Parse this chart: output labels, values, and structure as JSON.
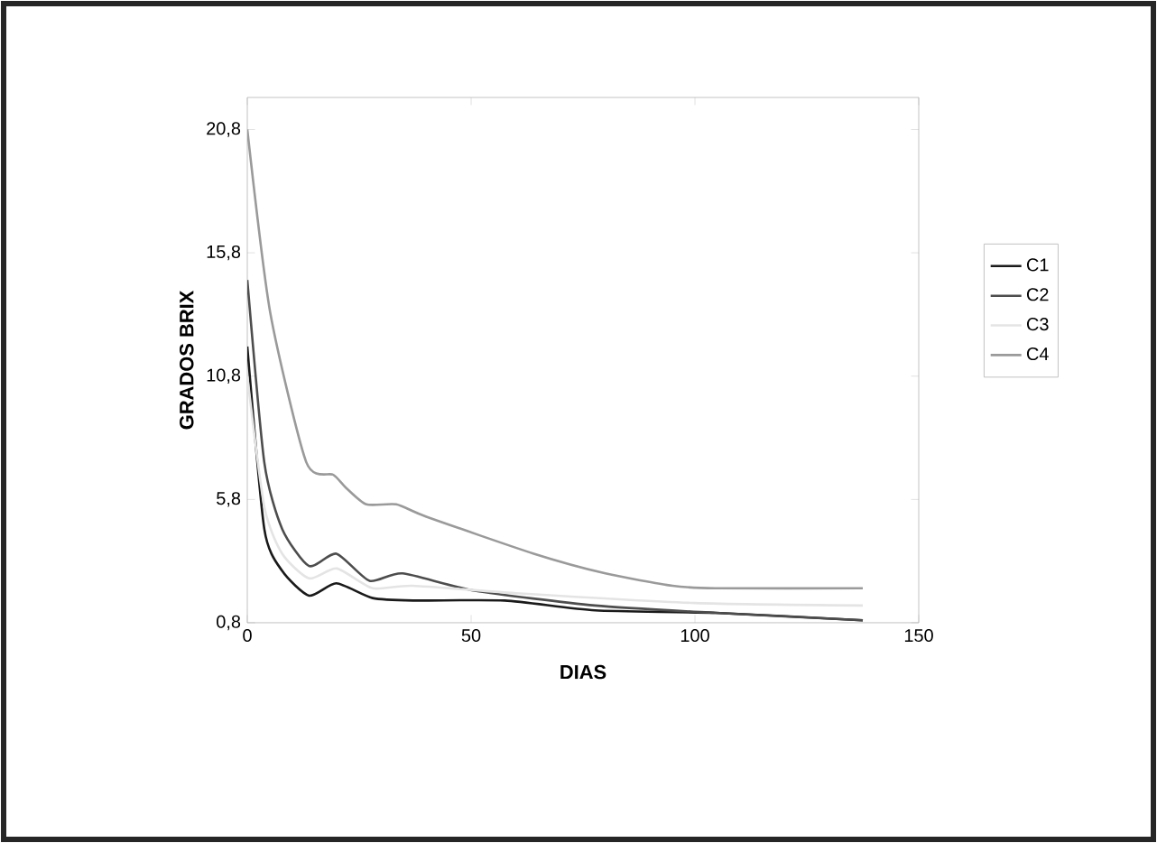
{
  "chart_data": {
    "type": "line",
    "xlabel": "DIAS",
    "ylabel": "GRADOS BRIX",
    "xlim": [
      0,
      150
    ],
    "ylim": [
      0.8,
      22.1
    ],
    "xticks": [
      0,
      50,
      100,
      150
    ],
    "yticks": [
      {
        "value": 0.8,
        "label": "0,8"
      },
      {
        "value": 5.8,
        "label": "5,8"
      },
      {
        "value": 10.8,
        "label": "10,8"
      },
      {
        "value": 15.8,
        "label": "15,8"
      },
      {
        "value": 20.8,
        "label": "20,8"
      }
    ],
    "grid": false,
    "legend": "right",
    "marker": "none",
    "line_style": "solid",
    "series": [
      {
        "name": "C1",
        "color": "#1a1a1a",
        "x": [
          0,
          3.8,
          7.8,
          13.8,
          19.9,
          28,
          37.4,
          57.5,
          77.7,
          104.6,
          137.5
        ],
        "values": [
          12.0,
          4.6,
          2.9,
          1.9,
          2.4,
          1.8,
          1.7,
          1.7,
          1.3,
          1.2,
          0.9
        ]
      },
      {
        "name": "C2",
        "color": "#4d4d4d",
        "x": [
          0,
          3.8,
          7.8,
          13.8,
          19.9,
          27.3,
          34.7,
          50.8,
          77.7,
          104.6,
          137.5
        ],
        "values": [
          14.7,
          7.3,
          4.6,
          3.1,
          3.6,
          2.5,
          2.8,
          2.1,
          1.5,
          1.2,
          0.9
        ]
      },
      {
        "name": "C3",
        "color": "#e4e4e4",
        "x": [
          0,
          3.8,
          7.8,
          13.8,
          20,
          28,
          37,
          60,
          100,
          137.5
        ],
        "values": [
          10.8,
          5.5,
          3.6,
          2.6,
          3.0,
          2.2,
          2.3,
          2.0,
          1.6,
          1.5
        ]
      },
      {
        "name": "C4",
        "color": "#9a9a9a",
        "x": [
          0,
          5.1,
          13.2,
          19.2,
          21.9,
          26.6,
          33.3,
          40,
          64,
          80,
          95,
          104.6,
          137.5
        ],
        "values": [
          20.8,
          13.4,
          7.3,
          6.8,
          6.3,
          5.6,
          5.6,
          5.1,
          3.6,
          2.8,
          2.3,
          2.2,
          2.2
        ]
      }
    ]
  }
}
